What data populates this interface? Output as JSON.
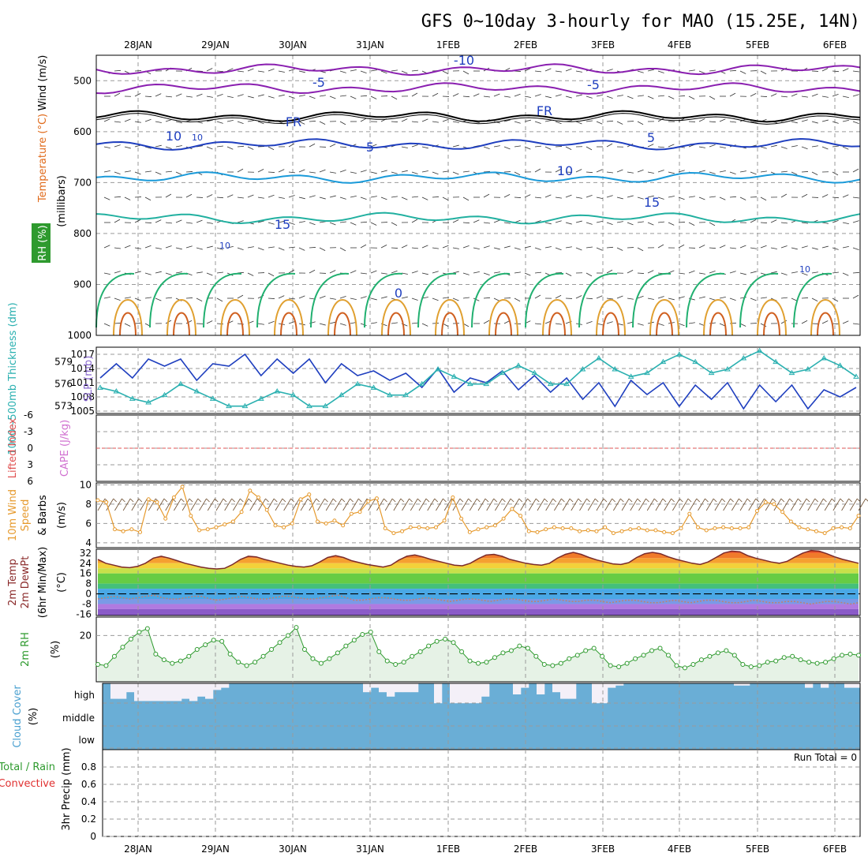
{
  "title": "GFS 0~10day 3-hourly for MAO (15.25E, 14N)",
  "dates": [
    "28JAN",
    "29JAN",
    "30JAN",
    "31JAN",
    "1FEB",
    "2FEB",
    "3FEB",
    "4FEB",
    "5FEB",
    "6FEB"
  ],
  "panel_labels": {
    "upper_wind": "Wind (m/s)",
    "upper_temp": "Temperature (°C)",
    "upper_rh": "RH (%)",
    "upper_axis": "(millibars)",
    "thick": "1000~500mb Thickness (dm)",
    "slp": "SLP (mb)",
    "lifted": "Lifted Index",
    "cape": "CAPE (J/kg)",
    "wind10_a": "10m Wind",
    "wind10_b": "Speed",
    "wind10_c": "& Barbs",
    "wind10_unit": "(m/s)",
    "temp_a": "2m Temp",
    "temp_b": "2m DewPt",
    "temp_c": "(6hr Min/Max)",
    "temp_unit": "(°C)",
    "rh2": "2m RH",
    "rh2_unit": "(%)",
    "cloud": "Cloud Cover",
    "cloud_unit": "(%)",
    "precip_a": "Total / Rain",
    "precip_b": "Convective",
    "precip_c": "3hr Precip (mm)"
  },
  "cloud_levels": [
    "high",
    "middle",
    "low"
  ],
  "run_total": "Run Total = 0",
  "colors": {
    "slp": "#1f3fbf",
    "thickness": "#2ab0b0",
    "wind10": "#e69a2e",
    "rh2": "#2e9a2e",
    "cloud": "#6aaed6",
    "lifted_zero": "#e05050",
    "temp_line": "#7a2a2a",
    "dewpt_line": "#c08070"
  },
  "chart_data": [
    {
      "type": "contour",
      "panel": "upper-air cross section",
      "y_ticks": [
        500,
        600,
        700,
        800,
        900,
        1000
      ],
      "ylim": [
        450,
        1000
      ],
      "contour_labels": [
        "-10",
        "-5",
        "-5",
        "FR",
        "FR",
        "5",
        "5",
        "10",
        "10",
        "15",
        "15",
        "0",
        "10",
        "10",
        "10"
      ],
      "temperature_levels_mb": [
        {
          "label": "-10",
          "pressure": 478
        },
        {
          "label": "-5",
          "pressure": 515
        },
        {
          "label": "FR",
          "pressure": 570
        },
        {
          "label": "5",
          "pressure": 625
        },
        {
          "label": "10",
          "pressure": 690
        },
        {
          "label": "15",
          "pressure": 770
        }
      ]
    },
    {
      "type": "line",
      "panel": "thickness and SLP",
      "left_axis": {
        "label": "1000~500mb Thickness (dm)",
        "ticks": [
          573,
          576,
          579
        ],
        "ylim": [
          572,
          581
        ]
      },
      "right_axis": {
        "label": "SLP (mb)",
        "ticks": [
          1005,
          1008,
          1011,
          1014,
          1017
        ],
        "ylim": [
          1004.5,
          1018.5
        ]
      },
      "series": [
        {
          "name": "SLP",
          "axis": "right",
          "values": [
            1012,
            1015,
            1012,
            1016,
            1014.5,
            1016,
            1011.5,
            1015,
            1014.5,
            1017,
            1012.5,
            1016,
            1013,
            1016,
            1011,
            1015,
            1012.5,
            1013.5,
            1011.5,
            1013,
            1010,
            1014,
            1009,
            1012,
            1011,
            1013.5,
            1009.5,
            1012.5,
            1009,
            1012,
            1007.5,
            1011,
            1006,
            1011.5,
            1008.5,
            1011,
            1006,
            1010.5,
            1007.5,
            1011,
            1005.5,
            1010.5,
            1007,
            1010.5,
            1005.5,
            1009.5,
            1008,
            1010
          ]
        },
        {
          "name": "Thickness",
          "axis": "left",
          "values": [
            575.5,
            575,
            574,
            573.5,
            574.5,
            576,
            575,
            574,
            573,
            573,
            574,
            575,
            574.5,
            573,
            573,
            574.5,
            576,
            575.5,
            574.5,
            574.5,
            576,
            578,
            577,
            576,
            576,
            577.5,
            578.5,
            577.5,
            576,
            576,
            578,
            579.5,
            578,
            577,
            577.5,
            579,
            580,
            579,
            577.5,
            578,
            579.5,
            580.5,
            579,
            577.5,
            578,
            579.5,
            578.5,
            577
          ]
        }
      ]
    },
    {
      "type": "line",
      "panel": "lifted index / CAPE",
      "y_ticks": [
        "-6",
        "-3",
        "0",
        "3",
        "6"
      ],
      "ylim": [
        -6,
        6
      ],
      "series": [
        {
          "name": "Lifted Index",
          "values": [
            0,
            0
          ]
        }
      ]
    },
    {
      "type": "line",
      "panel": "10m wind",
      "y_ticks": [
        4,
        6,
        8,
        10
      ],
      "ylim": [
        3.5,
        10.2
      ],
      "series": [
        {
          "name": "10m Wind Speed",
          "values": [
            8.4,
            8.2,
            5.4,
            5.2,
            5.4,
            5.1,
            8.5,
            8.2,
            6.5,
            8.7,
            9.8,
            6.8,
            5.3,
            5.4,
            5.6,
            5.9,
            6.2,
            7.2,
            9.4,
            8.7,
            7.4,
            5.8,
            5.6,
            6.0,
            8.5,
            9.0,
            6.2,
            6.0,
            6.3,
            5.8,
            7.0,
            7.2,
            8.3,
            8.6,
            5.5,
            5.0,
            5.2,
            5.6,
            5.6,
            5.5,
            5.6,
            6.3,
            8.7,
            6.5,
            5.1,
            5.4,
            5.6,
            5.8,
            6.5,
            7.5,
            6.8,
            5.2,
            5.1,
            5.4,
            5.6,
            5.5,
            5.5,
            5.2,
            5.3,
            5.2,
            5.6,
            5.0,
            5.2,
            5.4,
            5.5,
            5.3,
            5.3,
            5.1,
            5.0,
            5.5,
            7.0,
            5.6,
            5.3,
            5.5,
            5.6,
            5.5,
            5.5,
            5.6,
            7.3,
            8.2,
            8.0,
            7.2,
            6.2,
            5.6,
            5.4,
            5.2,
            5.0,
            5.5,
            5.6,
            5.5,
            6.8
          ]
        }
      ]
    },
    {
      "type": "area",
      "panel": "2m temp and dewpoint",
      "y_ticks": [
        "-16",
        "-8",
        "0",
        "8",
        "16",
        "24",
        "32"
      ],
      "ylim": [
        -17,
        35
      ],
      "series": [
        {
          "name": "2m Temp",
          "values": [
            27,
            24,
            22.5,
            21,
            20.5,
            21.5,
            24,
            28,
            29.5,
            28,
            26,
            24,
            22.5,
            21,
            20,
            19.5,
            20,
            23,
            27,
            29.5,
            29,
            27,
            25.5,
            24,
            22.5,
            21.5,
            21,
            22,
            25,
            28.5,
            30,
            28.5,
            26,
            24.5,
            23,
            22,
            21,
            22.5,
            26.5,
            29.5,
            30.5,
            29,
            27,
            25.5,
            24,
            22.5,
            22,
            24,
            27.5,
            30.5,
            31,
            29.5,
            27,
            25.5,
            24,
            23,
            22.5,
            24,
            28,
            31,
            32.5,
            31,
            28.5,
            26.5,
            25,
            23.5,
            23,
            24.5,
            28.5,
            31.5,
            32.5,
            31.5,
            29,
            27,
            25.5,
            24,
            23,
            25,
            28.5,
            32,
            33.5,
            33,
            30,
            28,
            26.5,
            25,
            24,
            25.5,
            29,
            32,
            34,
            33.5,
            31.5,
            29,
            27,
            25.5,
            24
          ]
        },
        {
          "name": "2m DewPt",
          "values": [
            -4,
            -3,
            -2,
            -3,
            -4,
            -3,
            -2,
            -1,
            -3,
            -4,
            -4,
            -3,
            -2,
            -2,
            -4,
            -5,
            -4,
            -3,
            -2,
            -3,
            -4,
            -4,
            -3,
            -2,
            -2,
            -3,
            -4,
            -4,
            -3,
            -2,
            -1,
            -3,
            -5,
            -5,
            -4,
            -3,
            -3,
            -4,
            -5,
            -5,
            -4,
            -3,
            -4,
            -5,
            -6,
            -5,
            -4,
            -4,
            -5,
            -6,
            -5,
            -4,
            -4,
            -5,
            -6,
            -6,
            -5,
            -4,
            -5,
            -6,
            -6,
            -5,
            -5,
            -6,
            -7,
            -6,
            -5,
            -5,
            -6,
            -7,
            -7,
            -6,
            -5,
            -6,
            -7,
            -6,
            -5,
            -5,
            -6,
            -7,
            -7,
            -6,
            -5,
            -6,
            -7,
            -7,
            -6,
            -6,
            -7,
            -8,
            -7,
            -6,
            -6,
            -7,
            -8,
            -7
          ]
        }
      ]
    },
    {
      "type": "area",
      "panel": "2m RH",
      "y_ticks": [
        20
      ],
      "ylim": [
        0,
        28
      ],
      "series": [
        {
          "name": "2m RH",
          "values": [
            7.5,
            7,
            11,
            15,
            18.5,
            21.5,
            23,
            12,
            9.5,
            8,
            9,
            11,
            14,
            16,
            18,
            17.5,
            12,
            8.5,
            7,
            8.5,
            11,
            14,
            17,
            20,
            23.5,
            14,
            10,
            8,
            10,
            12.5,
            15.5,
            18,
            20.5,
            21.5,
            13,
            9,
            7.5,
            8.5,
            11,
            13,
            15.5,
            17.5,
            18.5,
            17,
            13,
            9,
            8,
            8.5,
            10.5,
            12.5,
            13.5,
            15.5,
            14.5,
            11,
            7.5,
            7,
            8,
            10,
            11.5,
            13.5,
            14.5,
            11,
            7,
            6.5,
            8,
            10,
            11.5,
            13.5,
            14.5,
            11.5,
            7,
            6,
            7.5,
            9.5,
            11,
            12.5,
            13.5,
            11.5,
            7.5,
            6.5,
            7,
            8.5,
            9,
            10.5,
            11,
            9.5,
            8.5,
            8,
            8.5,
            10,
            11.5,
            12,
            11.5
          ]
        }
      ]
    },
    {
      "type": "bar",
      "panel": "cloud cover",
      "categories_axis": [
        "high",
        "middle",
        "low"
      ],
      "series": [
        {
          "name": "high cloud",
          "values": [
            0,
            70,
            70,
            40,
            80,
            80,
            80,
            80,
            80,
            80,
            70,
            80,
            60,
            70,
            30,
            20,
            0,
            0,
            0,
            0,
            0,
            0,
            0,
            0,
            0,
            0,
            0,
            0,
            0,
            0,
            0,
            0,
            0,
            40,
            20,
            40,
            60,
            40,
            40,
            40,
            0,
            0,
            90,
            0,
            90,
            90,
            90,
            90,
            60,
            0,
            0,
            0,
            50,
            20,
            0,
            50,
            0,
            40,
            70,
            70,
            0,
            0,
            90,
            90,
            20,
            10,
            0,
            0,
            0,
            0,
            0,
            0,
            0,
            0,
            0,
            0,
            0,
            0,
            0,
            0,
            10,
            10,
            0,
            0,
            0,
            0,
            0,
            0,
            0,
            20,
            0,
            20,
            0,
            0,
            20,
            20
          ]
        }
      ]
    },
    {
      "type": "bar",
      "panel": "3hr precip",
      "y_ticks": [
        0,
        0.2,
        0.4,
        0.6,
        0.8
      ],
      "ylim": [
        0,
        1
      ],
      "series": [
        {
          "name": "3hr Precip",
          "values": [
            0
          ]
        }
      ]
    }
  ]
}
